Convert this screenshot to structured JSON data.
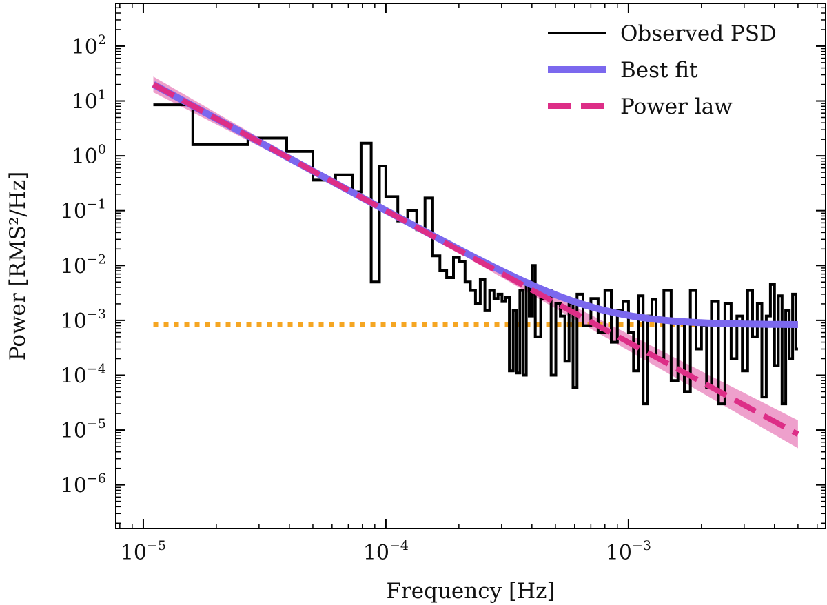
{
  "chart_data": {
    "type": "line",
    "title": "",
    "xlabel": "Frequency [Hz]",
    "ylabel": "Power [RMS²/Hz]",
    "xscale": "log",
    "yscale": "log",
    "xlim": [
      7.7e-06,
      0.0065
    ],
    "ylim": [
      1.6e-07,
      600
    ],
    "xticks": [
      {
        "value": 1e-05,
        "base": "10",
        "exp": "−5"
      },
      {
        "value": 0.0001,
        "base": "10",
        "exp": "−4"
      },
      {
        "value": 0.001,
        "base": "10",
        "exp": "−3"
      }
    ],
    "yticks": [
      {
        "value": 1e-06,
        "base": "10",
        "exp": "−6"
      },
      {
        "value": 1e-05,
        "base": "10",
        "exp": "−5"
      },
      {
        "value": 0.0001,
        "base": "10",
        "exp": "−4"
      },
      {
        "value": 0.001,
        "base": "10",
        "exp": "−3"
      },
      {
        "value": 0.01,
        "base": "10",
        "exp": "−2"
      },
      {
        "value": 0.1,
        "base": "10",
        "exp": "−1"
      },
      {
        "value": 1,
        "base": "10",
        "exp": "0"
      },
      {
        "value": 10,
        "base": "10",
        "exp": "1"
      },
      {
        "value": 100,
        "base": "10",
        "exp": "2"
      }
    ],
    "legend_position": "top-right",
    "series": [
      {
        "name": "Observed PSD",
        "kind": "steps",
        "color": "#000000",
        "x": [
          1.1e-05,
          1.6e-05,
          2.7e-05,
          3.9e-05,
          5e-05,
          6.2e-05,
          7.3e-05,
          7.9e-05,
          8.7e-05,
          9.4e-05,
          0.0001,
          0.000112,
          0.000123,
          0.000134,
          0.000145,
          0.000156,
          0.000167,
          0.000178,
          0.00019,
          0.000201,
          0.000212,
          0.000223,
          0.000234,
          0.000245,
          0.000256,
          0.000268,
          0.000279,
          0.00029,
          0.000301,
          0.000312,
          0.000323,
          0.000335,
          0.000346,
          0.000357,
          0.000368,
          0.000379,
          0.00039,
          0.000402,
          0.000413,
          0.000435,
          0.000457,
          0.00048,
          0.000502,
          0.000524,
          0.000547,
          0.000569,
          0.000591,
          0.000614,
          0.00065,
          0.0007,
          0.00075,
          0.0008,
          0.00085,
          0.0009,
          0.00095,
          0.001,
          0.00105,
          0.0011,
          0.00115,
          0.0012,
          0.00125,
          0.0013,
          0.0014,
          0.0015,
          0.0016,
          0.0017,
          0.0018,
          0.0019,
          0.002,
          0.0021,
          0.0022,
          0.00235,
          0.0025,
          0.00265,
          0.0028,
          0.00295,
          0.0031,
          0.00325,
          0.0034,
          0.00355,
          0.0037,
          0.00385,
          0.004,
          0.00415,
          0.0043,
          0.00445,
          0.0046,
          0.00475,
          0.0049
        ],
        "y": [
          8.5,
          1.6,
          2.1,
          1.2,
          0.36,
          0.45,
          0.22,
          1.7,
          0.005,
          0.65,
          0.18,
          0.065,
          0.1,
          0.045,
          0.17,
          0.015,
          0.008,
          0.006,
          0.014,
          0.012,
          0.005,
          0.0035,
          0.002,
          0.0055,
          0.0015,
          0.0035,
          0.0025,
          0.003,
          0.0022,
          0.0026,
          0.00012,
          0.0015,
          0.00011,
          0.0035,
          0.0001,
          0.005,
          0.0012,
          0.01,
          0.0005,
          0.0025,
          0.0035,
          0.0001,
          0.002,
          0.0012,
          0.00018,
          0.002,
          6e-05,
          0.003,
          0.0008,
          0.0025,
          0.0006,
          0.0035,
          0.0004,
          0.0015,
          0.0022,
          0.0006,
          0.00012,
          0.0028,
          3e-05,
          0.0012,
          0.0024,
          0.0002,
          0.0035,
          8e-05,
          0.0009,
          5e-05,
          0.0035,
          0.0003,
          0.0008,
          6e-05,
          0.0022,
          3e-05,
          0.002,
          0.0002,
          0.0012,
          0.00012,
          0.0035,
          0.0005,
          0.002,
          4e-05,
          0.0012,
          0.0045,
          0.00015,
          0.0028,
          3e-05,
          0.0015,
          0.0002,
          0.003,
          0.0003
        ]
      },
      {
        "name": "Best fit",
        "kind": "model_powerlaw_plus_const",
        "color": "#7b68ee",
        "amplitude_at_1e-4": 0.1,
        "index": -2.4,
        "constant": 0.00083
      },
      {
        "name": "Power law",
        "kind": "model_powerlaw",
        "color": "#dd2e87",
        "amplitude_at_1e-4": 0.1,
        "index": -2.4,
        "band_index_upper": -2.25,
        "band_index_lower": -2.55,
        "band_color": "#e880bb"
      },
      {
        "name": "",
        "kind": "constant",
        "color": "#f5a623",
        "value": 0.00083
      }
    ],
    "legend": [
      {
        "label": "Observed PSD",
        "color": "#000000",
        "style": "solid"
      },
      {
        "label": "Best fit",
        "color": "#7b68ee",
        "style": "solid-thick"
      },
      {
        "label": "Power law",
        "color": "#dd2e87",
        "style": "dashed"
      }
    ],
    "x_range_data": [
      1.1e-05,
      0.005
    ]
  }
}
